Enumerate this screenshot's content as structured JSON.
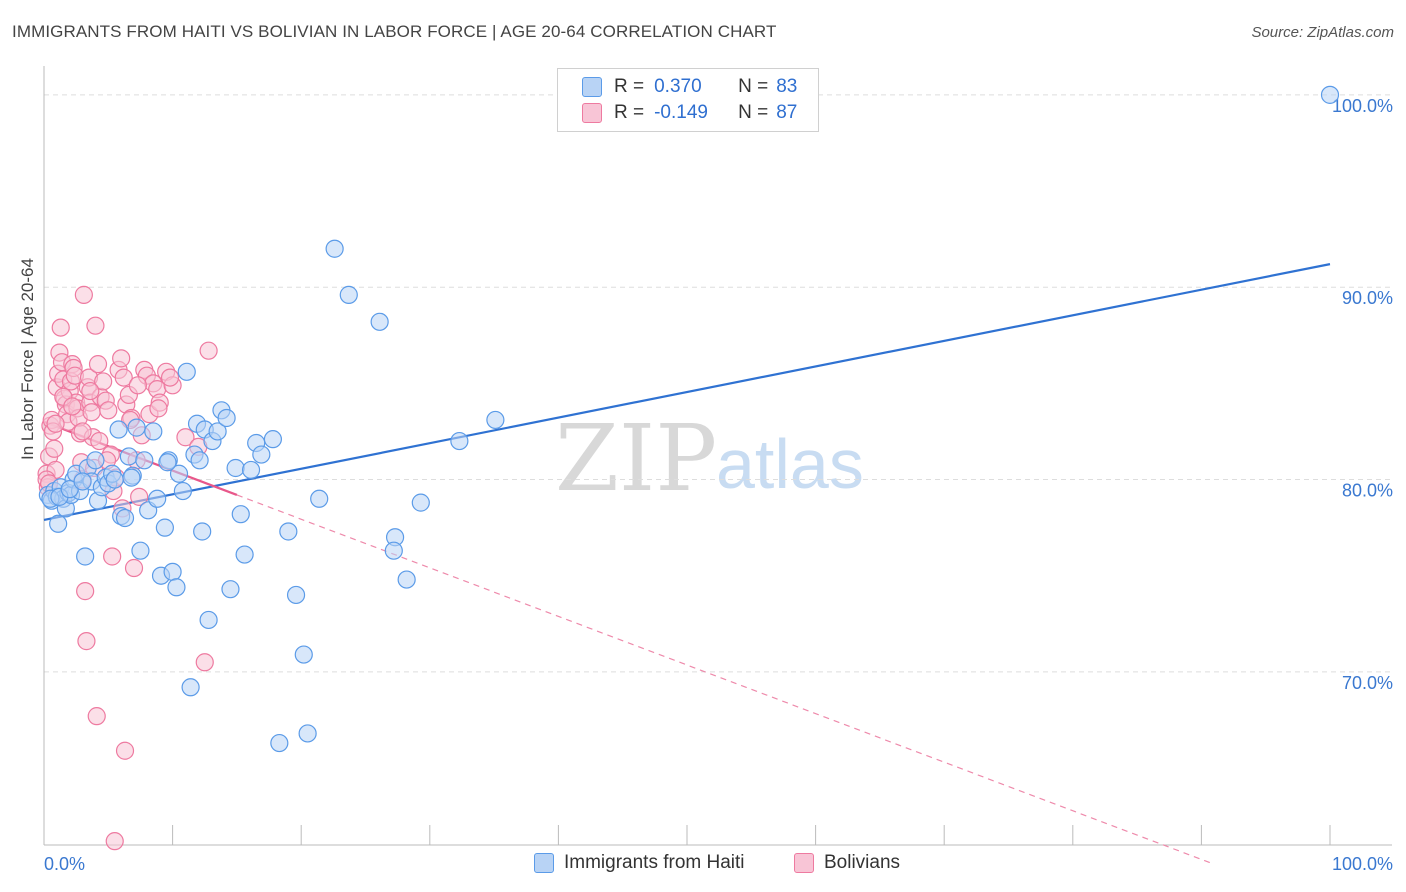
{
  "title": "IMMIGRANTS FROM HAITI VS BOLIVIAN IN LABOR FORCE | AGE 20-64 CORRELATION CHART",
  "source": "Source: ZipAtlas.com",
  "watermark": {
    "zip": "ZIP",
    "atlas": "atlas"
  },
  "colors": {
    "haiti": "#5b9be8",
    "haiti_fill": "#b8d3f5",
    "bolivia": "#ee7aa0",
    "bolivia_fill": "#f8c5d6",
    "axis_text": "#3a78d0",
    "grid": "#dddddd"
  },
  "legend": {
    "r_label": "R =",
    "n_label": "N =",
    "haiti": {
      "r": "0.370",
      "n": "83"
    },
    "bolivia": {
      "r": "-0.149",
      "n": "87"
    }
  },
  "chart_data": {
    "type": "scatter",
    "title": "IMMIGRANTS FROM HAITI VS BOLIVIAN IN LABOR FORCE | AGE 20-64 CORRELATION CHART",
    "xlabel": "",
    "ylabel": "In Labor Force | Age 20-64",
    "xlim": [
      0,
      100
    ],
    "ylim": [
      61,
      101.5
    ],
    "x_tick_labels": [
      "0.0%",
      "100.0%"
    ],
    "y_ticks": [
      70,
      80,
      90,
      100
    ],
    "y_tick_labels": [
      "70.0%",
      "80.0%",
      "90.0%",
      "100.0%"
    ],
    "grid": true,
    "legend_position": "top-center",
    "series": [
      {
        "name": "Immigrants from Haiti",
        "trend": {
          "x": [
            0,
            100
          ],
          "y": [
            77.9,
            91.2
          ],
          "style": "solid"
        },
        "points": [
          [
            0.3,
            79.2
          ],
          [
            0.6,
            78.9
          ],
          [
            0.8,
            79.4
          ],
          [
            1.0,
            79.1
          ],
          [
            1.1,
            77.7
          ],
          [
            1.3,
            79.6
          ],
          [
            1.5,
            79.0
          ],
          [
            1.7,
            78.5
          ],
          [
            1.9,
            79.3
          ],
          [
            2.1,
            79.2
          ],
          [
            2.3,
            80.0
          ],
          [
            2.5,
            80.3
          ],
          [
            2.8,
            79.4
          ],
          [
            3.2,
            76.0
          ],
          [
            3.4,
            80.6
          ],
          [
            3.7,
            79.9
          ],
          [
            4.0,
            81.0
          ],
          [
            4.2,
            78.9
          ],
          [
            4.5,
            79.6
          ],
          [
            4.8,
            80.1
          ],
          [
            5.0,
            79.8
          ],
          [
            5.3,
            80.3
          ],
          [
            5.5,
            80.0
          ],
          [
            5.8,
            82.6
          ],
          [
            6.0,
            78.1
          ],
          [
            6.3,
            78.0
          ],
          [
            6.6,
            81.2
          ],
          [
            6.9,
            80.2
          ],
          [
            7.2,
            82.7
          ],
          [
            7.5,
            76.3
          ],
          [
            7.8,
            81.0
          ],
          [
            8.1,
            78.4
          ],
          [
            8.5,
            82.5
          ],
          [
            8.8,
            79.0
          ],
          [
            9.1,
            75.0
          ],
          [
            9.4,
            77.5
          ],
          [
            9.7,
            81.0
          ],
          [
            10.0,
            75.2
          ],
          [
            10.3,
            74.4
          ],
          [
            10.5,
            80.3
          ],
          [
            10.8,
            79.4
          ],
          [
            11.1,
            85.6
          ],
          [
            11.4,
            69.2
          ],
          [
            11.7,
            81.3
          ],
          [
            11.9,
            82.9
          ],
          [
            12.1,
            81.0
          ],
          [
            12.3,
            77.3
          ],
          [
            12.5,
            82.6
          ],
          [
            12.8,
            72.7
          ],
          [
            13.1,
            82.0
          ],
          [
            13.5,
            82.5
          ],
          [
            13.8,
            83.6
          ],
          [
            14.2,
            83.2
          ],
          [
            14.5,
            74.3
          ],
          [
            14.9,
            80.6
          ],
          [
            15.3,
            78.2
          ],
          [
            15.6,
            76.1
          ],
          [
            16.1,
            80.5
          ],
          [
            16.5,
            81.9
          ],
          [
            16.9,
            81.3
          ],
          [
            17.8,
            82.1
          ],
          [
            18.3,
            66.3
          ],
          [
            19.0,
            77.3
          ],
          [
            19.6,
            74.0
          ],
          [
            20.2,
            70.9
          ],
          [
            20.5,
            66.8
          ],
          [
            21.4,
            79.0
          ],
          [
            22.6,
            92.0
          ],
          [
            23.7,
            89.6
          ],
          [
            26.1,
            88.2
          ],
          [
            27.3,
            77.0
          ],
          [
            27.2,
            76.3
          ],
          [
            28.2,
            74.8
          ],
          [
            29.3,
            78.8
          ],
          [
            32.3,
            82.0
          ],
          [
            35.1,
            83.1
          ],
          [
            100.0,
            100.0
          ],
          [
            0.5,
            79.0
          ],
          [
            1.2,
            79.1
          ],
          [
            2.0,
            79.5
          ],
          [
            3.0,
            79.9
          ],
          [
            6.8,
            80.1
          ],
          [
            9.6,
            80.9
          ]
        ]
      },
      {
        "name": "Bolivians",
        "trend": {
          "x": [
            0,
            15
          ],
          "y": [
            83.0,
            79.2
          ],
          "style": "solid",
          "extension": {
            "x": [
              15,
              91
            ],
            "y": [
              79.2,
              60.0
            ],
            "style": "dashed"
          }
        },
        "points": [
          [
            0.2,
            80.3
          ],
          [
            0.3,
            79.6
          ],
          [
            0.4,
            81.2
          ],
          [
            0.5,
            82.8
          ],
          [
            0.6,
            83.1
          ],
          [
            0.7,
            82.5
          ],
          [
            0.8,
            81.6
          ],
          [
            0.9,
            80.5
          ],
          [
            1.0,
            84.8
          ],
          [
            1.1,
            85.5
          ],
          [
            1.2,
            86.6
          ],
          [
            1.3,
            87.9
          ],
          [
            1.4,
            86.1
          ],
          [
            1.5,
            85.2
          ],
          [
            1.6,
            84.2
          ],
          [
            1.7,
            83.9
          ],
          [
            1.8,
            83.4
          ],
          [
            1.9,
            83.0
          ],
          [
            2.0,
            84.6
          ],
          [
            2.1,
            85.1
          ],
          [
            2.2,
            86.0
          ],
          [
            2.3,
            85.8
          ],
          [
            2.4,
            85.4
          ],
          [
            2.5,
            84.0
          ],
          [
            2.6,
            83.7
          ],
          [
            2.7,
            83.2
          ],
          [
            2.8,
            82.4
          ],
          [
            2.9,
            80.9
          ],
          [
            3.0,
            80.0
          ],
          [
            3.1,
            89.6
          ],
          [
            3.2,
            74.2
          ],
          [
            3.3,
            71.6
          ],
          [
            3.4,
            84.8
          ],
          [
            3.5,
            85.3
          ],
          [
            3.6,
            84.0
          ],
          [
            3.7,
            83.5
          ],
          [
            3.8,
            82.2
          ],
          [
            3.9,
            80.6
          ],
          [
            4.0,
            88.0
          ],
          [
            4.2,
            86.0
          ],
          [
            4.4,
            84.3
          ],
          [
            4.6,
            85.1
          ],
          [
            4.8,
            84.1
          ],
          [
            5.0,
            83.6
          ],
          [
            5.2,
            81.3
          ],
          [
            5.4,
            79.4
          ],
          [
            5.6,
            80.1
          ],
          [
            5.8,
            85.7
          ],
          [
            6.0,
            86.3
          ],
          [
            6.2,
            85.3
          ],
          [
            6.4,
            83.9
          ],
          [
            6.6,
            84.4
          ],
          [
            6.8,
            83.2
          ],
          [
            7.0,
            75.4
          ],
          [
            7.2,
            81.0
          ],
          [
            7.4,
            79.1
          ],
          [
            7.6,
            82.3
          ],
          [
            7.8,
            85.7
          ],
          [
            8.0,
            85.4
          ],
          [
            8.2,
            83.4
          ],
          [
            8.5,
            85.0
          ],
          [
            8.8,
            84.7
          ],
          [
            9.0,
            84.0
          ],
          [
            9.5,
            85.6
          ],
          [
            10.0,
            84.9
          ],
          [
            11.0,
            82.2
          ],
          [
            12.0,
            81.7
          ],
          [
            12.5,
            70.5
          ],
          [
            12.8,
            86.7
          ],
          [
            4.1,
            67.7
          ],
          [
            6.3,
            65.9
          ],
          [
            5.5,
            61.2
          ],
          [
            0.2,
            80.0
          ],
          [
            0.4,
            79.8
          ],
          [
            0.9,
            82.9
          ],
          [
            1.5,
            84.3
          ],
          [
            2.2,
            83.8
          ],
          [
            3.0,
            82.5
          ],
          [
            3.6,
            84.6
          ],
          [
            4.3,
            82.0
          ],
          [
            4.9,
            81.0
          ],
          [
            5.3,
            76.0
          ],
          [
            6.1,
            78.5
          ],
          [
            6.7,
            83.1
          ],
          [
            7.3,
            84.9
          ],
          [
            8.9,
            83.7
          ],
          [
            9.8,
            85.3
          ]
        ]
      }
    ]
  }
}
